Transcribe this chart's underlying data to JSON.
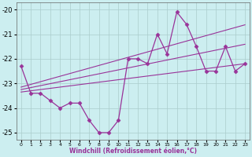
{
  "xlabel": "Windchill (Refroidissement éolien,°C)",
  "background_color": "#cceef0",
  "grid_color": "#aacccc",
  "line_color": "#993399",
  "xlim": [
    -0.5,
    23.5
  ],
  "ylim": [
    -25.3,
    -19.7
  ],
  "yticks": [
    -25,
    -24,
    -23,
    -22,
    -21,
    -20
  ],
  "xticks": [
    0,
    1,
    2,
    3,
    4,
    5,
    6,
    7,
    8,
    9,
    10,
    11,
    12,
    13,
    14,
    15,
    16,
    17,
    18,
    19,
    20,
    21,
    22,
    23
  ],
  "x": [
    0,
    1,
    2,
    3,
    4,
    5,
    6,
    7,
    8,
    9,
    10,
    11,
    12,
    13,
    14,
    15,
    16,
    17,
    18,
    19,
    20,
    21,
    22,
    23
  ],
  "windchill": [
    -22.3,
    -23.4,
    -23.4,
    -23.7,
    -24.0,
    -23.8,
    -23.8,
    -24.5,
    -25.0,
    -25.0,
    -24.5,
    -22.0,
    -22.0,
    -22.2,
    -21.0,
    -21.8,
    -20.1,
    -20.6,
    -21.5,
    -22.5,
    -22.5,
    -21.5,
    -22.5,
    -22.2
  ],
  "reg_low": [
    -23.35,
    -23.3,
    -23.25,
    -23.2,
    -23.15,
    -23.1,
    -23.05,
    -23.0,
    -22.95,
    -22.9,
    -22.85,
    -22.8,
    -22.75,
    -22.7,
    -22.65,
    -22.6,
    -22.55,
    -22.5,
    -22.45,
    -22.4,
    -22.35,
    -22.3,
    -22.25,
    -22.2
  ],
  "reg_mid": [
    -23.25,
    -23.17,
    -23.09,
    -23.01,
    -22.93,
    -22.85,
    -22.77,
    -22.69,
    -22.61,
    -22.53,
    -22.45,
    -22.37,
    -22.29,
    -22.21,
    -22.13,
    -22.05,
    -21.97,
    -21.89,
    -21.81,
    -21.73,
    -21.65,
    -21.57,
    -21.49,
    -21.41
  ],
  "reg_high": [
    -23.15,
    -23.04,
    -22.93,
    -22.82,
    -22.71,
    -22.6,
    -22.49,
    -22.38,
    -22.27,
    -22.16,
    -22.05,
    -21.94,
    -21.83,
    -21.72,
    -21.61,
    -21.5,
    -21.39,
    -21.28,
    -21.17,
    -21.06,
    -20.95,
    -20.84,
    -20.73,
    -20.62
  ]
}
